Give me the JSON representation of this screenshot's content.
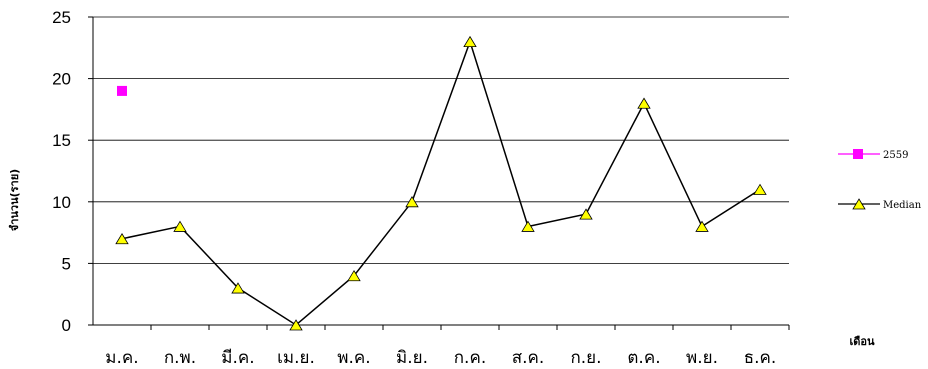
{
  "chart_data": {
    "type": "line",
    "title": "",
    "xlabel": "เดือน",
    "ylabel": "จำนวน(ราย)",
    "ylim": [
      0,
      25
    ],
    "yticks": [
      "0",
      "5",
      "10",
      "15",
      "20",
      "25"
    ],
    "categories": [
      "ม.ค.",
      "ก.พ.",
      "มี.ค.",
      "เม.ย.",
      "พ.ค.",
      "มิ.ย.",
      "ก.ค.",
      "ส.ค.",
      "ก.ย.",
      "ต.ค.",
      "พ.ย.",
      "ธ.ค."
    ],
    "grid": true,
    "legend_position": "right",
    "series": [
      {
        "name": "2559",
        "values": [
          19,
          null,
          null,
          null,
          null,
          null,
          null,
          null,
          null,
          null,
          null,
          null
        ],
        "color": "#ff00ff",
        "marker": "square"
      },
      {
        "name": "Median",
        "values": [
          7,
          8,
          3,
          0,
          4,
          10,
          23,
          8,
          9,
          18,
          8,
          11
        ],
        "color": "#000000",
        "marker": "triangle",
        "marker_fill": "#ffff00"
      }
    ]
  }
}
